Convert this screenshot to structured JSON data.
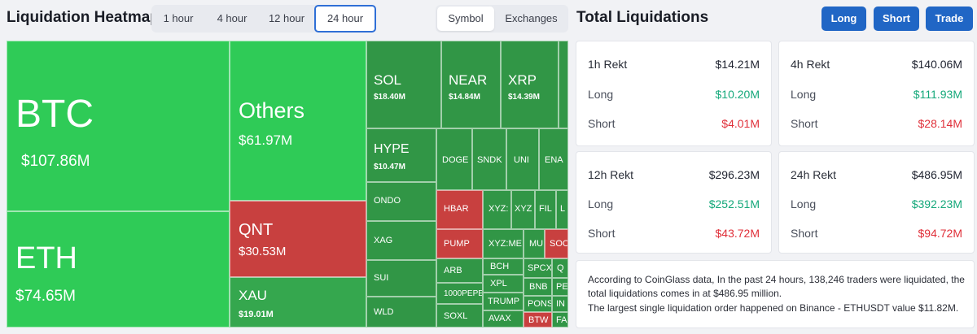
{
  "header": {
    "title": "Liquidation Heatmap",
    "timeframes": [
      "1 hour",
      "4 hour",
      "12 hour",
      "24 hour"
    ],
    "active_timeframe": "24 hour",
    "modes": [
      "Symbol",
      "Exchanges"
    ],
    "active_mode": "Symbol"
  },
  "right_header": {
    "title": "Total Liquidations",
    "buttons": [
      "Long",
      "Short",
      "Trade"
    ]
  },
  "colors": {
    "accent": "#2066c5",
    "long": "#14a87a",
    "short": "#e0303a",
    "tile_green": "#2fcb57",
    "tile_red": "#c8403f"
  },
  "heatmap": {
    "tiles": [
      {
        "symbol": "BTC",
        "value": "$107.86M"
      },
      {
        "symbol": "ETH",
        "value": "$74.65M"
      },
      {
        "symbol": "Others",
        "value": "$61.97M"
      },
      {
        "symbol": "QNT",
        "value": "$30.53M"
      },
      {
        "symbol": "XAU",
        "value": "$19.01M"
      },
      {
        "symbol": "SOL",
        "value": "$18.40M"
      },
      {
        "symbol": "NEAR",
        "value": "$14.84M"
      },
      {
        "symbol": "XRP",
        "value": "$14.39M"
      },
      {
        "symbol": "HYPE",
        "value": "$10.47M"
      },
      {
        "symbol": "DOGE"
      },
      {
        "symbol": "SNDK"
      },
      {
        "symbol": "UNI"
      },
      {
        "symbol": "ENA"
      },
      {
        "symbol": "ONDO"
      },
      {
        "symbol": "HBAR"
      },
      {
        "symbol": "XYZ:"
      },
      {
        "symbol": "XYZ"
      },
      {
        "symbol": "FIL"
      },
      {
        "symbol": "L"
      },
      {
        "symbol": "XAG"
      },
      {
        "symbol": "PUMP"
      },
      {
        "symbol": "XYZ:ME"
      },
      {
        "symbol": "MU"
      },
      {
        "symbol": "SOC"
      },
      {
        "symbol": "SUI"
      },
      {
        "symbol": "ARB"
      },
      {
        "symbol": "BCH"
      },
      {
        "symbol": "SPCX"
      },
      {
        "symbol": "Q"
      },
      {
        "symbol": "1000PEPE"
      },
      {
        "symbol": "XPL"
      },
      {
        "symbol": "BNB"
      },
      {
        "symbol": "PE"
      },
      {
        "symbol": "WLD"
      },
      {
        "symbol": "SOXL"
      },
      {
        "symbol": "TRUMP"
      },
      {
        "symbol": "PONS"
      },
      {
        "symbol": "IN"
      },
      {
        "symbol": "AVAX"
      },
      {
        "symbol": "BTW"
      },
      {
        "symbol": "FA"
      },
      {
        "symbol": "Z"
      }
    ]
  },
  "totals": [
    {
      "label": "1h Rekt",
      "total": "$14.21M",
      "long_label": "Long",
      "long": "$10.20M",
      "short_label": "Short",
      "short": "$4.01M"
    },
    {
      "label": "4h Rekt",
      "total": "$140.06M",
      "long_label": "Long",
      "long": "$111.93M",
      "short_label": "Short",
      "short": "$28.14M"
    },
    {
      "label": "12h Rekt",
      "total": "$296.23M",
      "long_label": "Long",
      "long": "$252.51M",
      "short_label": "Short",
      "short": "$43.72M"
    },
    {
      "label": "24h Rekt",
      "total": "$486.95M",
      "long_label": "Long",
      "long": "$392.23M",
      "short_label": "Short",
      "short": "$94.72M"
    }
  ],
  "summary": {
    "line1": "According to CoinGlass data, In the past 24 hours, 138,246 traders were liquidated, the",
    "line2": "total liquidations comes in at $486.95 million.",
    "line3": "The largest single liquidation order happened on Binance - ETHUSDT value $11.82M."
  }
}
